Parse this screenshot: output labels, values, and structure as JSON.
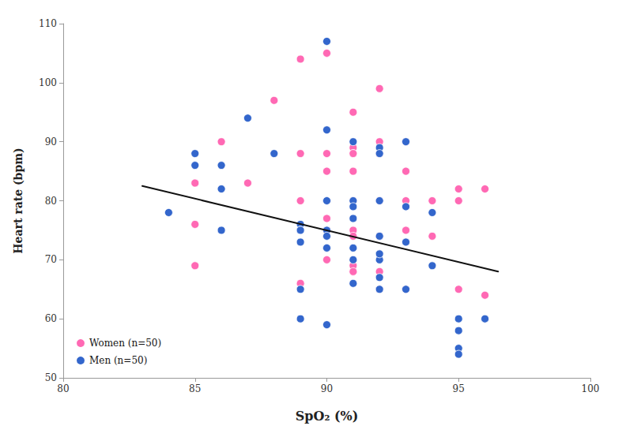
{
  "chart_data": {
    "type": "scatter",
    "xlabel": "SpO₂ (%)",
    "ylabel": "Heart rate (bpm)",
    "xlim": [
      80,
      100
    ],
    "ylim": [
      50,
      110
    ],
    "xticks": [
      80,
      85,
      90,
      95,
      100
    ],
    "yticks": [
      50,
      60,
      70,
      80,
      90,
      100,
      110
    ],
    "grid": false,
    "legend": "lower left",
    "series": [
      {
        "name": "Women (n=50)",
        "type": "scatter",
        "marker": "circle",
        "color": "#ff69b4",
        "x": [
          85,
          85,
          85,
          86,
          87,
          88,
          89,
          89,
          89,
          89,
          90,
          90,
          90,
          90,
          90,
          90,
          90,
          91,
          91,
          91,
          91,
          91,
          91,
          91,
          91,
          92,
          92,
          92,
          92,
          92,
          93,
          93,
          93,
          93,
          94,
          94,
          95,
          95,
          96,
          96,
          90,
          91,
          92,
          93,
          85,
          89,
          91,
          91,
          92,
          95
        ],
        "values": [
          83,
          83,
          76,
          90,
          83,
          97,
          104,
          88,
          80,
          66,
          105,
          105,
          88,
          85,
          80,
          77,
          75,
          95,
          89,
          88,
          85,
          80,
          75,
          74,
          68,
          99,
          90,
          88,
          80,
          68,
          90,
          85,
          80,
          75,
          80,
          74,
          82,
          65,
          82,
          64,
          70,
          69,
          74,
          65,
          69,
          66,
          88,
          68,
          65,
          80
        ]
      },
      {
        "name": "Men (n=50)",
        "type": "scatter",
        "marker": "circle",
        "color": "#3366cc",
        "x": [
          84,
          85,
          85,
          86,
          86,
          86,
          87,
          88,
          89,
          89,
          89,
          89,
          89,
          89,
          90,
          90,
          90,
          90,
          90,
          90,
          90,
          90,
          90,
          91,
          91,
          91,
          91,
          91,
          91,
          91,
          92,
          92,
          92,
          92,
          92,
          92,
          92,
          93,
          93,
          93,
          93,
          94,
          94,
          95,
          95,
          95,
          95,
          96,
          90,
          92
        ],
        "values": [
          78,
          88,
          86,
          82,
          86,
          75,
          94,
          88,
          76,
          75,
          75,
          73,
          65,
          60,
          107,
          92,
          80,
          80,
          75,
          74,
          72,
          72,
          59,
          90,
          80,
          79,
          77,
          72,
          70,
          66,
          89,
          88,
          80,
          74,
          70,
          67,
          65,
          90,
          79,
          73,
          65,
          78,
          69,
          60,
          58,
          55,
          54,
          60,
          80,
          71
        ]
      },
      {
        "type": "line",
        "line_style": "solid",
        "color": "#111111",
        "x": [
          83,
          96.5
        ],
        "values": [
          82.5,
          68.0
        ]
      }
    ]
  }
}
